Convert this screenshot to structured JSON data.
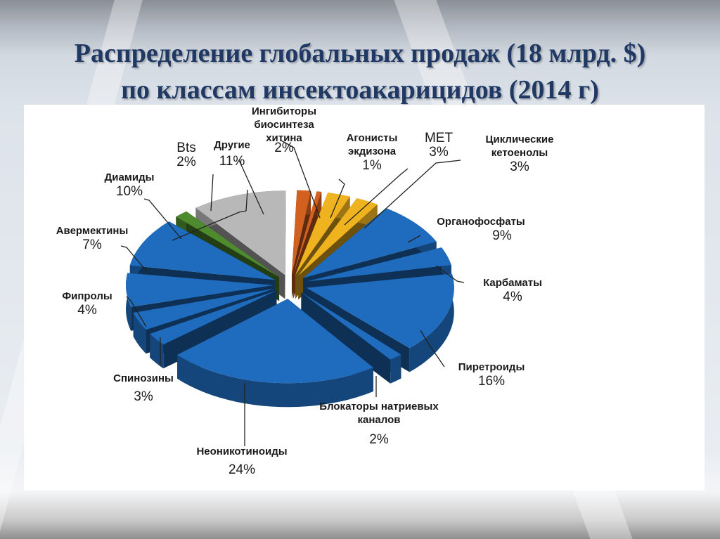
{
  "slide": {
    "title_line1": "Распределение глобальных продаж (18 млрд. $)",
    "title_line2": "по классам инсектоакарицидов (2014 г)"
  },
  "chart_data": {
    "type": "pie",
    "title": "Распределение глобальных продаж (18 млрд. $) по классам инсектоакарицидов (2014 г)",
    "style": "3d-exploded",
    "unit": "%",
    "total_sales": "18 млрд. $",
    "year": "2014",
    "slices": [
      {
        "label": "Ингибиторы биосинтеза хитина",
        "value": 2,
        "pct": "2%",
        "color": "#d2601e"
      },
      {
        "label": "Агонисты экдизона",
        "value": 1,
        "pct": "1%",
        "color": "#d2601e"
      },
      {
        "label": "MET",
        "value": 3,
        "pct": "3%",
        "color": "#f0b320"
      },
      {
        "label": "Циклические кетоенолы",
        "value": 3,
        "pct": "3%",
        "color": "#f0b320"
      },
      {
        "label": "Органофосфаты",
        "value": 9,
        "pct": "9%",
        "color": "#1f6bbd"
      },
      {
        "label": "Карбаматы",
        "value": 4,
        "pct": "4%",
        "color": "#1f6bbd"
      },
      {
        "label": "Пиретроиды",
        "value": 16,
        "pct": "16%",
        "color": "#1f6bbd"
      },
      {
        "label": "Блокаторы натриевых каналов",
        "value": 2,
        "pct": "2%",
        "color": "#1f6bbd"
      },
      {
        "label": "Неоникотиноиды",
        "value": 24,
        "pct": "24%",
        "color": "#1f6bbd"
      },
      {
        "label": "Спинозины",
        "value": 3,
        "pct": "3%",
        "color": "#1f6bbd"
      },
      {
        "label": "Фипролы",
        "value": 4,
        "pct": "4%",
        "color": "#1f6bbd"
      },
      {
        "label": "Авермектины",
        "value": 7,
        "pct": "7%",
        "color": "#1f6bbd"
      },
      {
        "label": "Диамиды",
        "value": 10,
        "pct": "10%",
        "color": "#1f6bbd"
      },
      {
        "label": "Bts",
        "value": 2,
        "pct": "2%",
        "color": "#4e8a2e"
      },
      {
        "label": "Другие",
        "value": 11,
        "pct": "11%",
        "color": "#b8b8b8"
      }
    ],
    "legend_position": "callout-labels"
  },
  "labels": {
    "chitin": {
      "line1": "Ингибиторы",
      "line2": "биосинтеза",
      "line3": "хитина",
      "pct": "2%"
    },
    "ecdysone": {
      "line1": "Агонисты",
      "line2": "экдизона",
      "pct": "1%"
    },
    "met": {
      "name": "MET",
      "pct": "3%"
    },
    "keto": {
      "line1": "Циклические",
      "line2": "кетоенолы",
      "pct": "3%"
    },
    "organo": {
      "name": "Органофосфаты",
      "pct": "9%"
    },
    "carb": {
      "name": "Карбаматы",
      "pct": "4%"
    },
    "pyre": {
      "name": "Пиретроиды",
      "pct": "16%"
    },
    "sodium": {
      "line1": "Блокаторы  натриевых",
      "line2": "каналов",
      "pct": "2%"
    },
    "neonic": {
      "name": "Неоникотиноиды",
      "pct": "24%"
    },
    "spino": {
      "name": "Спинозины",
      "pct": "3%"
    },
    "fipro": {
      "name": "Фипролы",
      "pct": "4%"
    },
    "averm": {
      "name": "Авермектины",
      "pct": "7%"
    },
    "diam": {
      "name": "Диамиды",
      "pct": "10%"
    },
    "bts": {
      "name": "Bts",
      "pct": "2%"
    },
    "other": {
      "name": "Другие",
      "pct": "11%"
    }
  }
}
